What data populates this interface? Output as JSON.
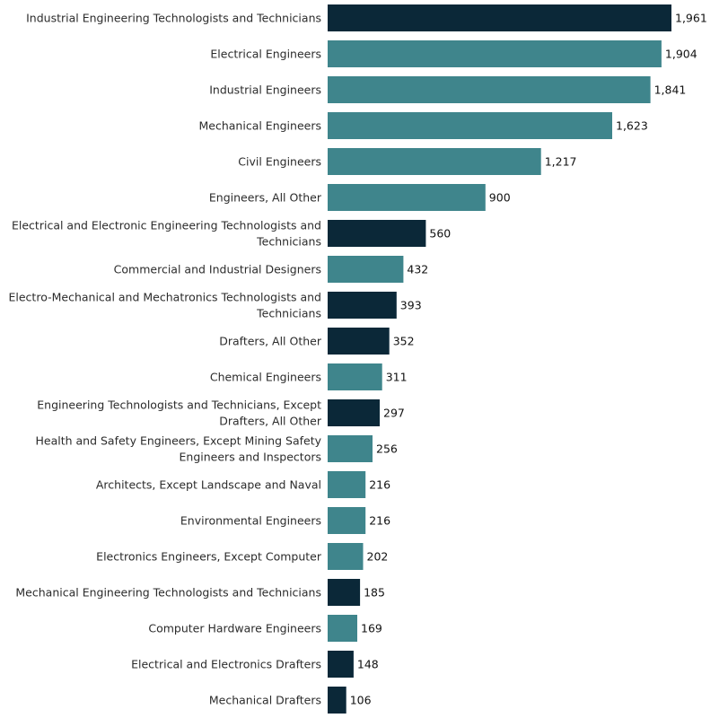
{
  "chart_data": {
    "type": "bar",
    "orientation": "horizontal",
    "title": "",
    "xlabel": "",
    "ylabel": "",
    "categories": [
      "Industrial Engineering Technologists and Technicians",
      "Electrical Engineers",
      "Industrial Engineers",
      "Mechanical Engineers",
      "Civil Engineers",
      "Engineers, All Other",
      "Electrical and Electronic Engineering Technologists and Technicians",
      "Commercial and Industrial Designers",
      "Electro-Mechanical and Mechatronics Technologists and Technicians",
      "Drafters, All Other",
      "Chemical Engineers",
      "Engineering Technologists and Technicians, Except Drafters, All Other",
      "Health and Safety Engineers, Except Mining Safety Engineers and Inspectors",
      "Architects, Except Landscape and Naval",
      "Environmental Engineers",
      "Electronics Engineers, Except Computer",
      "Mechanical Engineering Technologists and Technicians",
      "Computer Hardware Engineers",
      "Electrical and Electronics Drafters",
      "Mechanical Drafters"
    ],
    "label_lines": [
      [
        "Industrial Engineering Technologists and Technicians"
      ],
      [
        "Electrical Engineers"
      ],
      [
        "Industrial Engineers"
      ],
      [
        "Mechanical Engineers"
      ],
      [
        "Civil Engineers"
      ],
      [
        "Engineers, All Other"
      ],
      [
        "Electrical and Electronic Engineering Technologists and",
        "Technicians"
      ],
      [
        "Commercial and Industrial Designers"
      ],
      [
        "Electro-Mechanical and Mechatronics Technologists and",
        "Technicians"
      ],
      [
        "Drafters, All Other"
      ],
      [
        "Chemical Engineers"
      ],
      [
        "Engineering Technologists and Technicians, Except",
        "Drafters, All Other"
      ],
      [
        "Health and Safety Engineers, Except Mining Safety",
        "Engineers and Inspectors"
      ],
      [
        "Architects, Except Landscape and Naval"
      ],
      [
        "Environmental Engineers"
      ],
      [
        "Electronics Engineers, Except Computer"
      ],
      [
        "Mechanical Engineering Technologists and Technicians"
      ],
      [
        "Computer Hardware Engineers"
      ],
      [
        "Electrical and Electronics Drafters"
      ],
      [
        "Mechanical Drafters"
      ]
    ],
    "values": [
      1961,
      1904,
      1841,
      1623,
      1217,
      900,
      560,
      432,
      393,
      352,
      311,
      297,
      256,
      216,
      216,
      202,
      185,
      169,
      148,
      106
    ],
    "value_labels": [
      "1,961",
      "1,904",
      "1,841",
      "1,623",
      "1,217",
      "900",
      "560",
      "432",
      "393",
      "352",
      "311",
      "297",
      "256",
      "216",
      "216",
      "202",
      "185",
      "169",
      "148",
      "106"
    ],
    "bar_groups": [
      "dark",
      "teal",
      "teal",
      "teal",
      "teal",
      "teal",
      "dark",
      "teal",
      "dark",
      "dark",
      "teal",
      "dark",
      "teal",
      "teal",
      "teal",
      "teal",
      "dark",
      "teal",
      "dark",
      "dark"
    ],
    "colors": {
      "dark": "#0b2838",
      "teal": "#3f858c"
    },
    "xlim": [
      0,
      1961
    ],
    "grid": false,
    "legend": "none"
  }
}
